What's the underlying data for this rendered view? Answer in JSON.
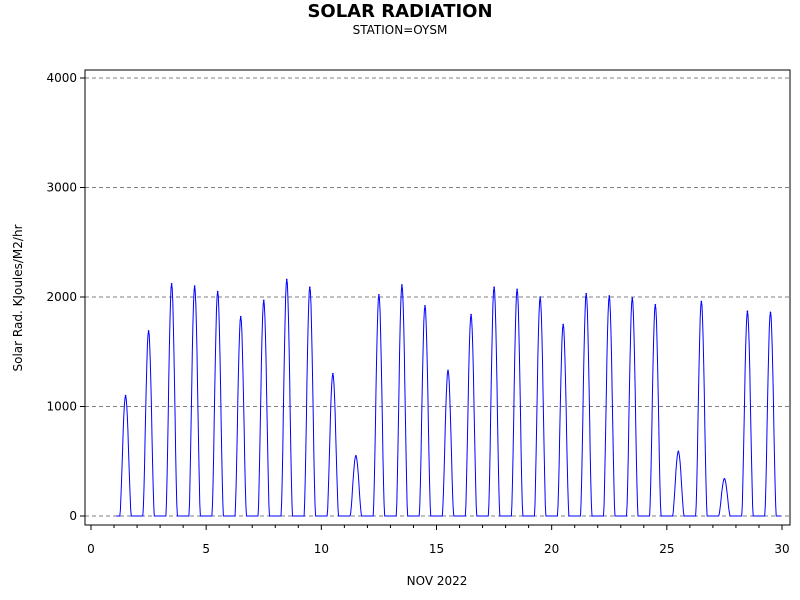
{
  "chart_data": {
    "type": "line",
    "title": "SOLAR RADIATION",
    "subtitle": "STATION=OYSM",
    "xlabel": "NOV 2022",
    "ylabel": "Solar Rad. KJoules/M2/hr",
    "xlim": [
      0,
      30
    ],
    "ylim": [
      0,
      4000
    ],
    "x_ticks": [
      0,
      5,
      10,
      15,
      20,
      25,
      30
    ],
    "y_ticks": [
      0,
      1000,
      2000,
      3000,
      4000
    ],
    "grid": "horizontal dashed at y ticks",
    "colors": {
      "series": "#0000ff",
      "grid": "#808080",
      "axis": "#000000"
    },
    "series": [
      {
        "daily_peaks": [
          {
            "day": 1,
            "peak": 1100
          },
          {
            "day": 2,
            "peak": 1690
          },
          {
            "day": 3,
            "peak": 2120
          },
          {
            "day": 4,
            "peak": 2100
          },
          {
            "day": 5,
            "peak": 2050
          },
          {
            "day": 6,
            "peak": 1820
          },
          {
            "day": 7,
            "peak": 1970
          },
          {
            "day": 8,
            "peak": 2160
          },
          {
            "day": 9,
            "peak": 2090
          },
          {
            "day": 10,
            "peak": 1300
          },
          {
            "day": 11,
            "peak": 550
          },
          {
            "day": 12,
            "peak": 2020
          },
          {
            "day": 13,
            "peak": 2110
          },
          {
            "day": 14,
            "peak": 1920
          },
          {
            "day": 15,
            "peak": 1330
          },
          {
            "day": 16,
            "peak": 1840
          },
          {
            "day": 17,
            "peak": 2090
          },
          {
            "day": 18,
            "peak": 2070
          },
          {
            "day": 19,
            "peak": 2000
          },
          {
            "day": 20,
            "peak": 1750
          },
          {
            "day": 21,
            "peak": 2030
          },
          {
            "day": 22,
            "peak": 2010
          },
          {
            "day": 23,
            "peak": 1990
          },
          {
            "day": 24,
            "peak": 1930
          },
          {
            "day": 25,
            "peak": 590
          },
          {
            "day": 26,
            "peak": 1960
          },
          {
            "day": 27,
            "peak": 340
          },
          {
            "day": 28,
            "peak": 1870
          },
          {
            "day": 29,
            "peak": 1860
          }
        ]
      }
    ]
  }
}
